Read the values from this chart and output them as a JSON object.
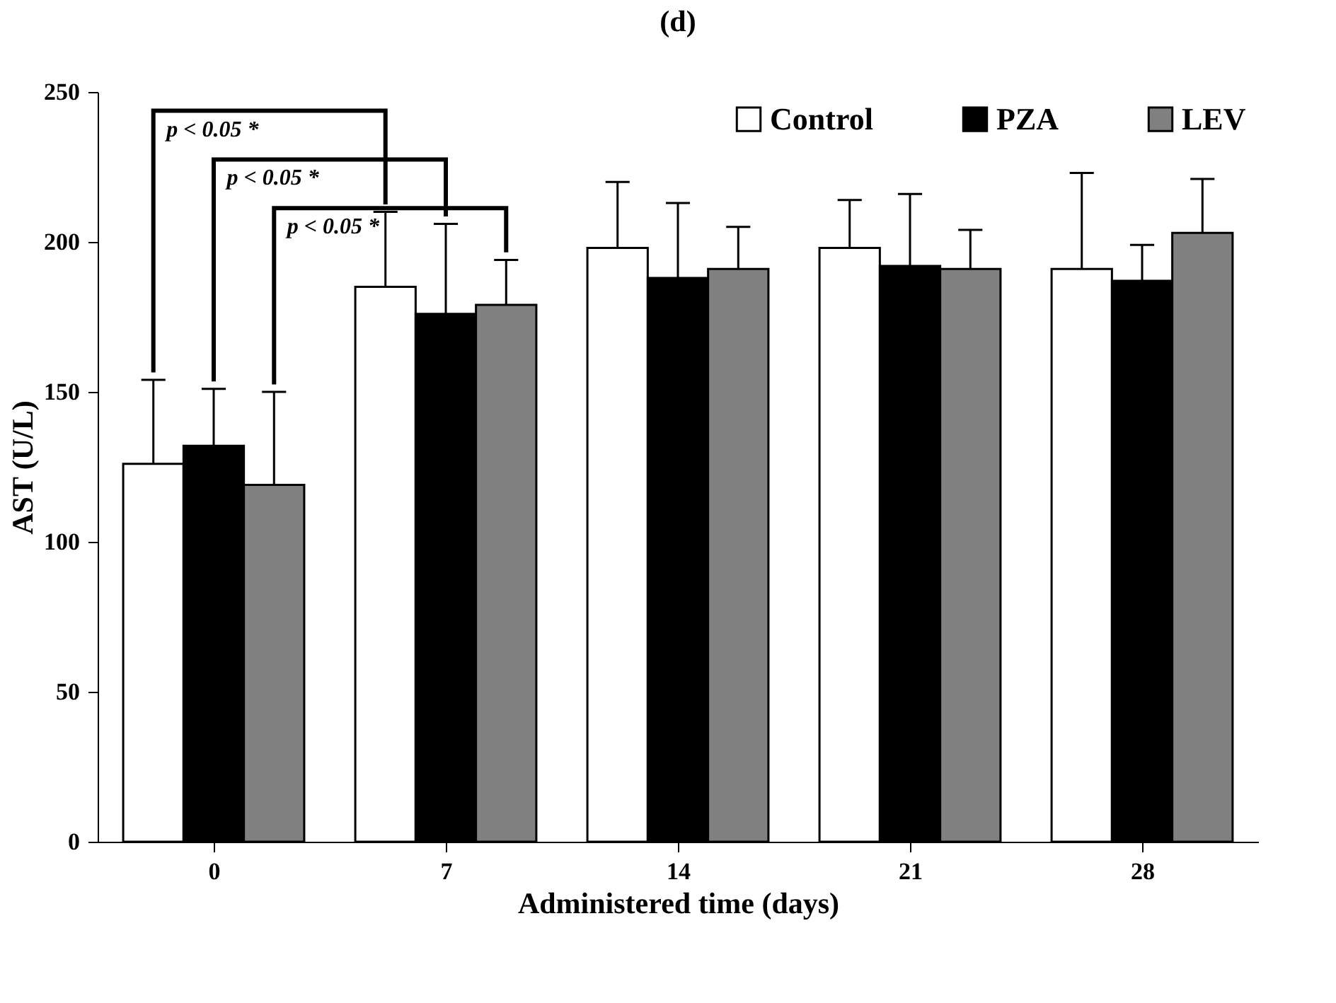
{
  "chart_data": {
    "type": "bar",
    "title": "(d)",
    "xlabel": "Administered time (days)",
    "ylabel": "AST (U/L)",
    "categories": [
      "0",
      "7",
      "14",
      "21",
      "28"
    ],
    "series": [
      {
        "name": "Control",
        "color": "#ffffff",
        "values": [
          126,
          185,
          198,
          198,
          191
        ],
        "errors": [
          28,
          25,
          22,
          16,
          32
        ]
      },
      {
        "name": "PZA",
        "color": "#000000",
        "values": [
          132,
          176,
          188,
          192,
          187
        ],
        "errors": [
          19,
          30,
          25,
          24,
          12
        ]
      },
      {
        "name": "LEV",
        "color": "#808080",
        "values": [
          119,
          179,
          191,
          191,
          203
        ],
        "errors": [
          31,
          15,
          14,
          13,
          18
        ]
      }
    ],
    "ylim": [
      0,
      250
    ],
    "yticks": [
      0,
      50,
      100,
      150,
      200,
      250
    ],
    "grid": false,
    "legend": "top right",
    "annotations": [
      "p < 0.05 *",
      "p < 0.05 *",
      "p < 0.05 *"
    ]
  }
}
